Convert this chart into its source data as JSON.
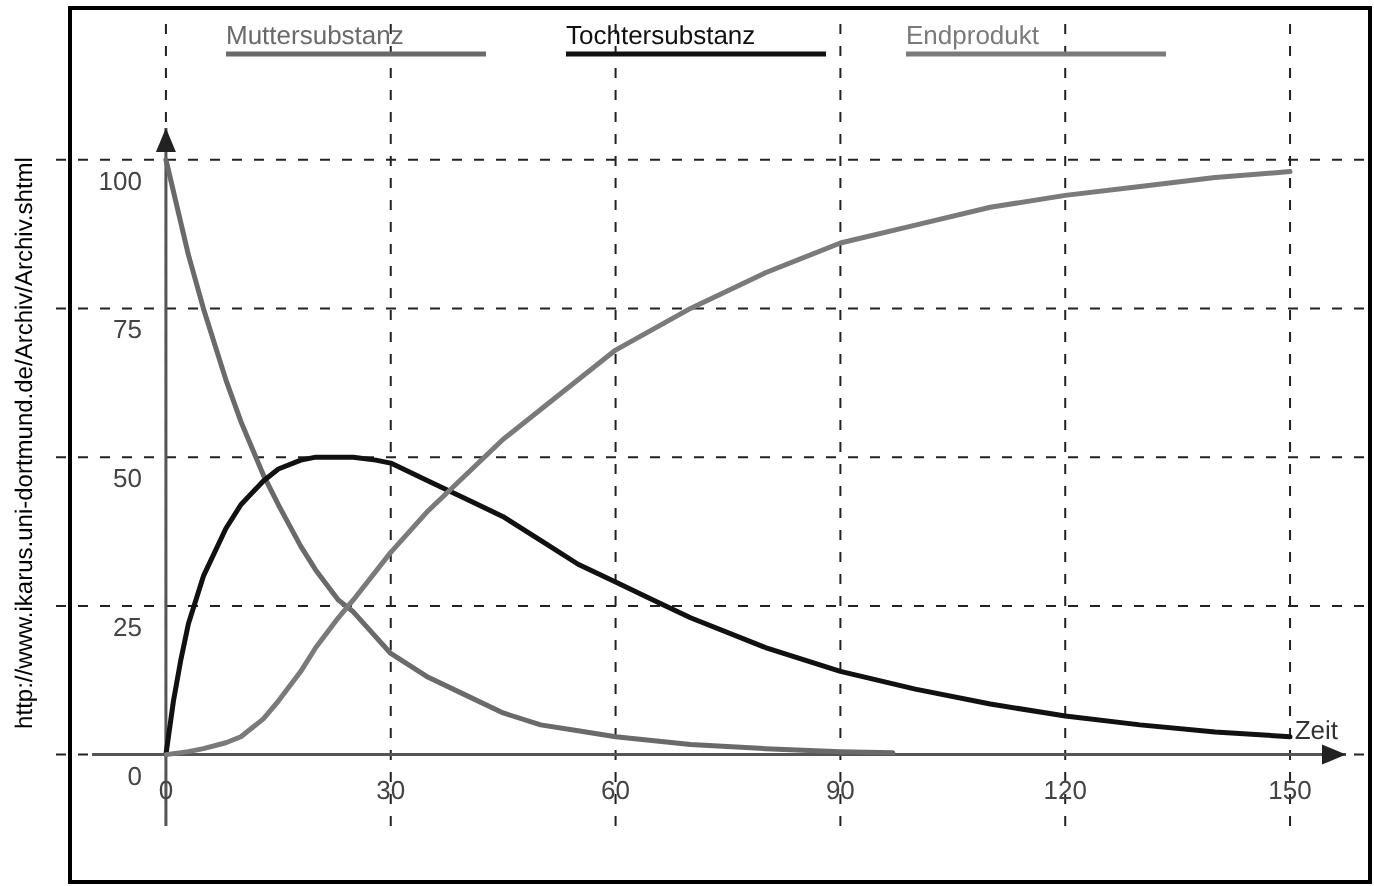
{
  "chart_data": {
    "type": "line",
    "xlabel": "Zeit",
    "annotations": [
      "http://www.ikarus.uni-dortmund.de/Archiv/Archiv.shtml"
    ],
    "xlim": [
      -12,
      158
    ],
    "ylim": [
      -12,
      106
    ],
    "xticks": [
      0,
      30,
      60,
      90,
      120,
      150
    ],
    "yticks": [
      0,
      25,
      50,
      75,
      100
    ],
    "grid": true,
    "legend": "top",
    "line_style": "solid",
    "series": [
      {
        "name": "Muttersubstanz",
        "color": "#6a6a6a",
        "x": [
          0,
          3,
          5,
          8,
          10,
          13,
          15,
          18,
          20,
          23,
          25,
          30,
          35,
          40,
          45,
          50,
          55,
          60,
          70,
          80,
          90,
          97
        ],
        "values": [
          100,
          84,
          75,
          63,
          56,
          47,
          42,
          35,
          31,
          26,
          24,
          17,
          13,
          10,
          7,
          5,
          4,
          3,
          1.7,
          1,
          0.5,
          0.3
        ]
      },
      {
        "name": "Tochtersubstanz",
        "color": "#111111",
        "x": [
          0,
          1,
          2,
          3,
          5,
          8,
          10,
          13,
          15,
          18,
          20,
          23,
          25,
          28,
          30,
          35,
          40,
          45,
          50,
          55,
          60,
          65,
          70,
          80,
          90,
          100,
          110,
          120,
          130,
          140,
          150
        ],
        "values": [
          0,
          9,
          16,
          22,
          30,
          38,
          42,
          46,
          48,
          49.5,
          50,
          50,
          50,
          49.5,
          49,
          46,
          43,
          40,
          36,
          32,
          29,
          26,
          23,
          18,
          14,
          11,
          8.5,
          6.5,
          5,
          3.8,
          3
        ]
      },
      {
        "name": "Endprodukt",
        "color": "#7a7a7a",
        "x": [
          0,
          3,
          5,
          8,
          10,
          13,
          15,
          18,
          20,
          23,
          25,
          30,
          35,
          40,
          45,
          50,
          55,
          60,
          70,
          80,
          90,
          100,
          110,
          120,
          130,
          140,
          150
        ],
        "values": [
          0,
          0.5,
          1,
          2,
          3,
          6,
          9,
          14,
          18,
          23,
          26,
          34,
          41,
          47,
          53,
          58,
          63,
          68,
          75,
          81,
          86,
          89,
          92,
          94,
          95.5,
          97,
          98
        ]
      }
    ]
  }
}
